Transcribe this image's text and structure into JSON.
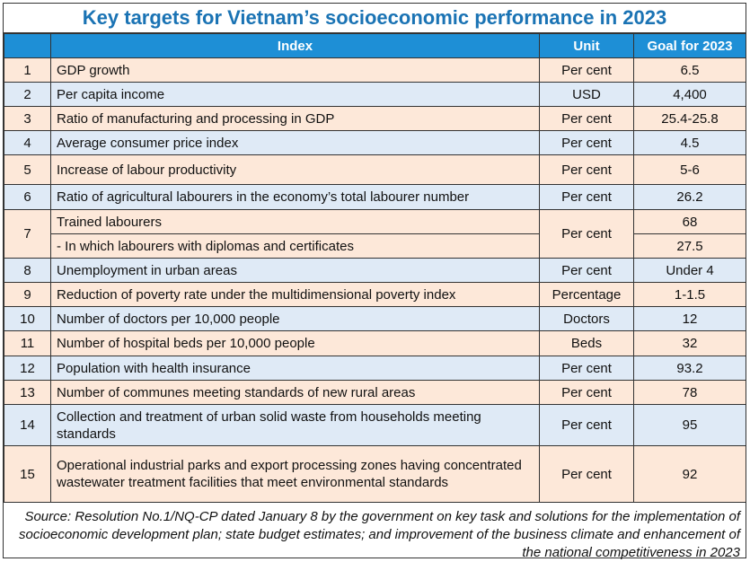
{
  "title": "Key targets for Vietnam’s socioeconomic performance in 2023",
  "headers": {
    "num": "",
    "index": "Index",
    "unit": "Unit",
    "goal": "Goal for 2023"
  },
  "rows": [
    {
      "n": "1",
      "index": "GDP growth",
      "unit": "Per cent",
      "goal": "6.5"
    },
    {
      "n": "2",
      "index": "Per capita income",
      "unit": "USD",
      "goal": "4,400"
    },
    {
      "n": "3",
      "index": "Ratio of manufacturing and processing in GDP",
      "unit": "Per cent",
      "goal": "25.4-25.8"
    },
    {
      "n": "4",
      "index": "Average consumer price index",
      "unit": "Per cent",
      "goal": "4.5"
    },
    {
      "n": "5",
      "index": "Increase of labour productivity",
      "unit": "Per cent",
      "goal": "5-6"
    },
    {
      "n": "6",
      "index": "Ratio of agricultural labourers in the economy’s total labourer number",
      "unit": "Per cent",
      "goal": "26.2"
    },
    {
      "n": "7",
      "index": "Trained labourers",
      "sub_index": "- In which labourers with diplomas and certificates",
      "unit": "Per cent",
      "goal": "68",
      "sub_goal": "27.5"
    },
    {
      "n": "8",
      "index": "Unemployment in urban areas",
      "unit": "Per cent",
      "goal": "Under 4"
    },
    {
      "n": "9",
      "index": "Reduction of poverty rate under the multidimensional poverty index",
      "unit": "Percentage",
      "goal": "1-1.5"
    },
    {
      "n": "10",
      "index": "Number of doctors per 10,000 people",
      "unit": "Doctors",
      "goal": "12"
    },
    {
      "n": "11",
      "index": "Number of hospital beds per 10,000 people",
      "unit": "Beds",
      "goal": "32"
    },
    {
      "n": "12",
      "index": "Population with health insurance",
      "unit": "Per cent",
      "goal": "93.2"
    },
    {
      "n": "13",
      "index": "Number of communes meeting standards of new rural areas",
      "unit": "Per cent",
      "goal": "78"
    },
    {
      "n": "14",
      "index": "Collection and treatment of urban solid waste from households meeting standards",
      "unit": "Per cent",
      "goal": "95"
    },
    {
      "n": "15",
      "index": "Operational industrial parks and export processing zones having concentrated wastewater treatment facilities that meet environmental standards",
      "unit": "Per cent",
      "goal": "92"
    }
  ],
  "source": "Source: Resolution No.1/NQ-CP dated January 8 by the government on key task and solutions for the implementation of socioeconomic development plan; state budget estimates; and improvement of the business climate and enhancement of the national competitiveness in 2023"
}
